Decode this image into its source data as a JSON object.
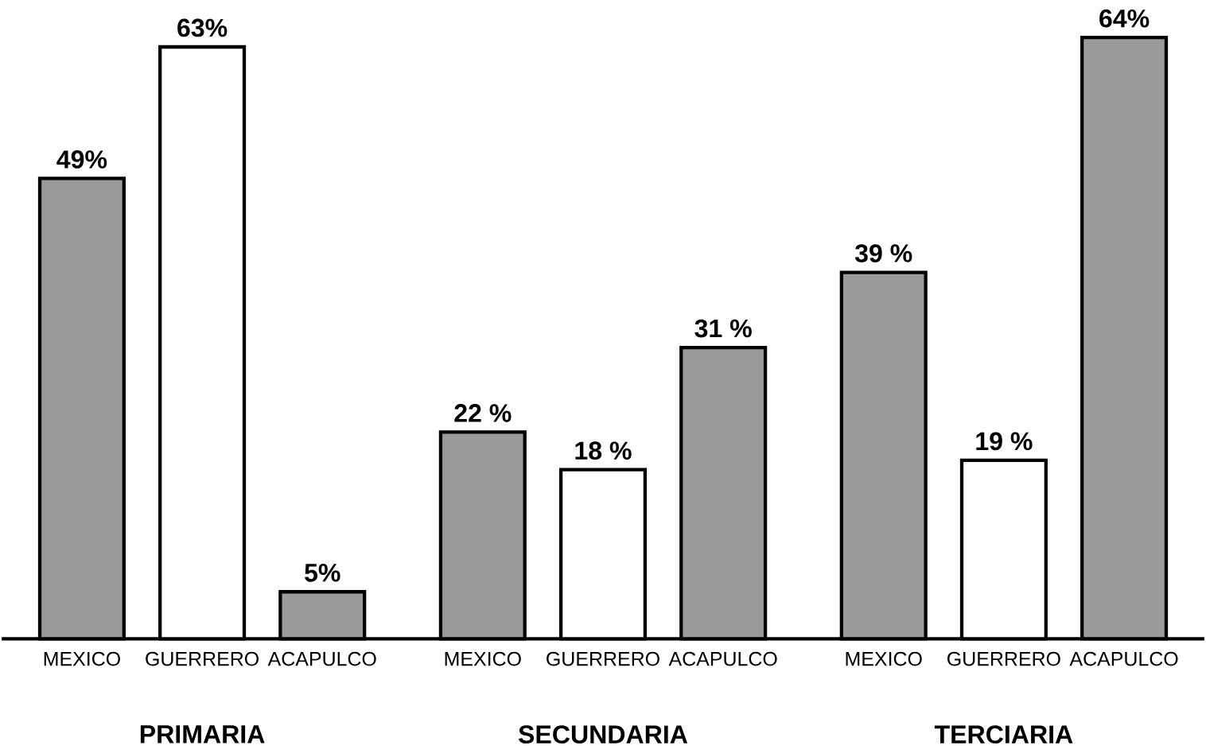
{
  "chart_data": {
    "type": "bar",
    "categories": [
      "PRIMARIA",
      "SECUNDARIA",
      "TERCIARIA"
    ],
    "series": [
      {
        "name": "MEXICO",
        "color": "#9a9a9a",
        "values": [
          49,
          22,
          39
        ],
        "value_labels": [
          "49%",
          "22 %",
          "39 %"
        ]
      },
      {
        "name": "GUERRERO",
        "color": "#ffffff",
        "values": [
          63,
          18,
          19
        ],
        "value_labels": [
          "63%",
          "18 %",
          "19 %"
        ]
      },
      {
        "name": "ACAPULCO",
        "color": "#9a9a9a",
        "values": [
          5,
          31,
          64
        ],
        "value_labels": [
          "5%",
          "31 %",
          "64%"
        ]
      }
    ]
  }
}
